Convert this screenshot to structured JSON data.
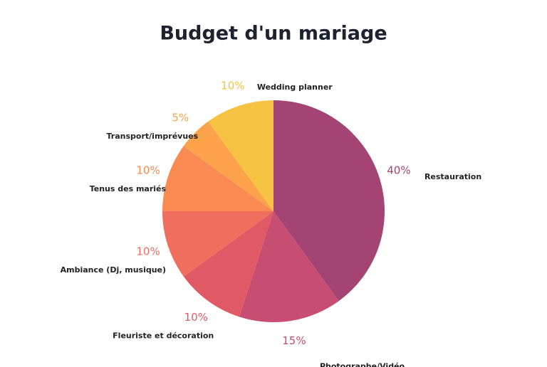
{
  "chart_data": {
    "type": "pie",
    "title": "Budget d'un mariage",
    "categories": [
      "Restauration",
      "Photographe/Vidéo",
      "Fleuriste et décoration",
      "Ambiance (Dj, musique)",
      "Tenus des mariés",
      "Transport/imprévues",
      "Wedding planner"
    ],
    "values": [
      40,
      15,
      10,
      10,
      10,
      5,
      10
    ],
    "value_labels": [
      "40%",
      "15%",
      "10%",
      "10%",
      "10%",
      "5%",
      "10%"
    ],
    "colors": [
      "#a34473",
      "#c84d72",
      "#e05a66",
      "#f06e5e",
      "#f98a52",
      "#fba24a",
      "#f5c242"
    ]
  }
}
